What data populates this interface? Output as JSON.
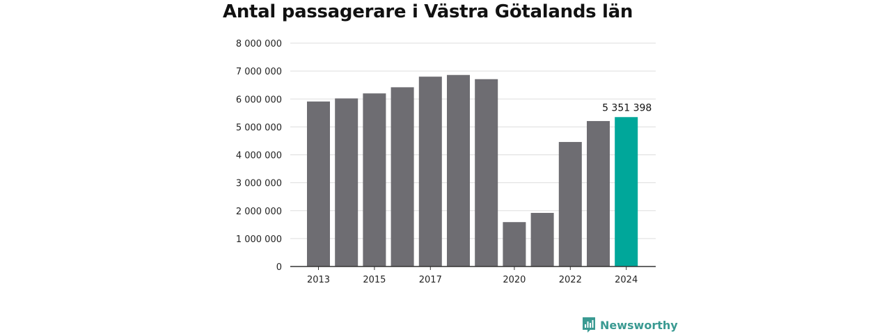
{
  "chart_data": {
    "type": "bar",
    "title": "Antal passagerare i Västra Götalands län",
    "categories": [
      "2013",
      "2014",
      "2015",
      "2016",
      "2017",
      "2018",
      "2019",
      "2020",
      "2021",
      "2022",
      "2023",
      "2024"
    ],
    "values": [
      5910000,
      6020000,
      6200000,
      6420000,
      6800000,
      6860000,
      6710000,
      1590000,
      1920000,
      4460000,
      5210000,
      5351398
    ],
    "x_tick_labels": [
      "2013",
      "2015",
      "2017",
      "2020",
      "2022",
      "2024"
    ],
    "y_ticks": [
      0,
      1000000,
      2000000,
      3000000,
      4000000,
      5000000,
      6000000,
      7000000,
      8000000
    ],
    "y_tick_labels": [
      "0",
      "1 000 000",
      "2 000 000",
      "3 000 000",
      "4 000 000",
      "5 000 000",
      "6 000 000",
      "7 000 000",
      "8 000 000"
    ],
    "ylim": [
      0,
      8000000
    ],
    "xlabel": "",
    "ylabel": "",
    "grid": true,
    "highlight": {
      "category": "2024",
      "label": "5 351 398"
    },
    "colors": {
      "bar": "#6e6d72",
      "highlight": "#00a79a",
      "grid": "#dddddd",
      "axis": "#333333"
    }
  },
  "brand": {
    "name": "Newsworthy",
    "icon": "newsworthy-chart-icon",
    "color": "#3a9a92"
  }
}
